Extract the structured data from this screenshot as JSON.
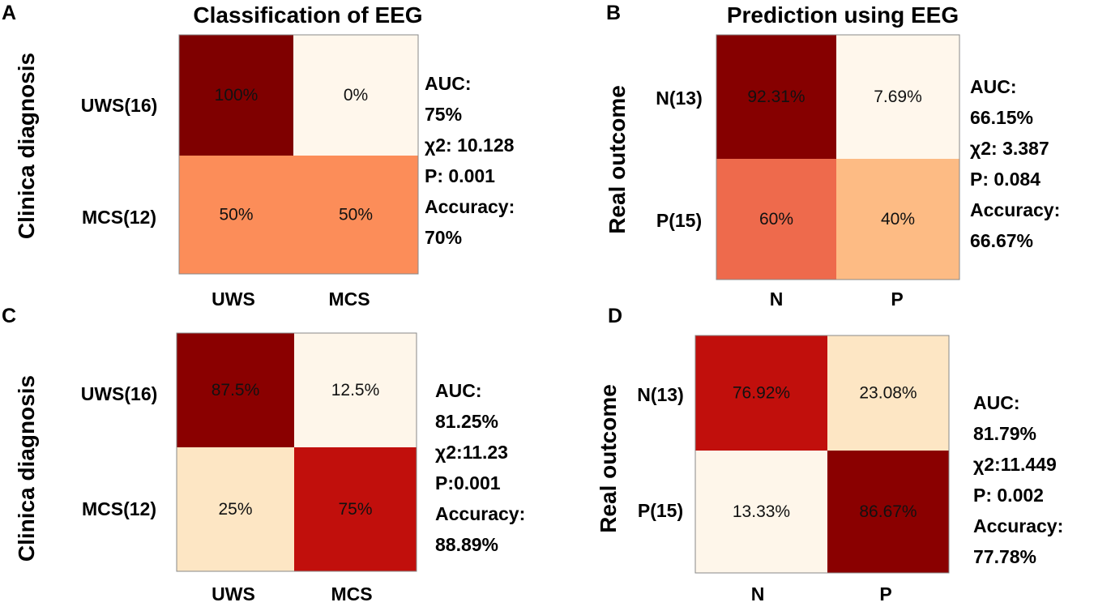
{
  "colors": {
    "c100": "#7f0000",
    "c90": "#860000",
    "c85": "#8a0000",
    "c75": "#c10f0c",
    "c60": "#ee6a4c",
    "c50": "#fc8d59",
    "c40": "#fdbb84",
    "c25": "#fde6c4",
    "c20": "#fde5c2",
    "c10": "#fef6ea",
    "c5": "#fff7ec",
    "c0": "#fff7ec"
  },
  "chart_data": [
    {
      "panel": "A",
      "type": "heatmap",
      "title": "Classification of EEG",
      "ylabel": "Clinica diagnosis",
      "rows": [
        "UWS(16)",
        "MCS(12)"
      ],
      "cols": [
        "UWS",
        "MCS"
      ],
      "values": [
        [
          100,
          0
        ],
        [
          50,
          50
        ]
      ],
      "labels": [
        [
          "100%",
          "0%"
        ],
        [
          "50%",
          "50%"
        ]
      ],
      "stats": [
        "AUC:",
        "75%",
        "χ2: 10.128",
        "P: 0.001",
        "Accuracy:",
        "70%"
      ]
    },
    {
      "panel": "B",
      "type": "heatmap",
      "title": "Prediction using EEG",
      "ylabel": "Real outcome",
      "rows": [
        "N(13)",
        "P(15)"
      ],
      "cols": [
        "N",
        "P"
      ],
      "values": [
        [
          92.31,
          7.69
        ],
        [
          60,
          40
        ]
      ],
      "labels": [
        [
          "92.31%",
          "7.69%"
        ],
        [
          "60%",
          "40%"
        ]
      ],
      "stats": [
        "AUC:",
        "66.15%",
        "χ2: 3.387",
        "P: 0.084",
        "Accuracy:",
        "66.67%"
      ]
    },
    {
      "panel": "C",
      "type": "heatmap",
      "title": "",
      "ylabel": "Clinica diagnosis",
      "rows": [
        "UWS(16)",
        "MCS(12)"
      ],
      "cols": [
        "UWS",
        "MCS"
      ],
      "values": [
        [
          87.5,
          12.5
        ],
        [
          25,
          75
        ]
      ],
      "labels": [
        [
          "87.5%",
          "12.5%"
        ],
        [
          "25%",
          "75%"
        ]
      ],
      "stats": [
        "AUC:",
        "81.25%",
        "χ2:11.23",
        "P:0.001",
        "Accuracy:",
        "88.89%"
      ]
    },
    {
      "panel": "D",
      "type": "heatmap",
      "title": "",
      "ylabel": "Real outcome",
      "rows": [
        "N(13)",
        "P(15)"
      ],
      "cols": [
        "N",
        "P"
      ],
      "values": [
        [
          76.92,
          23.08
        ],
        [
          13.33,
          86.67
        ]
      ],
      "labels": [
        [
          "76.92%",
          "23.08%"
        ],
        [
          "13.33%",
          "86.67%"
        ]
      ],
      "stats": [
        "AUC:",
        "81.79%",
        "χ2:11.449",
        "P: 0.002",
        "Accuracy:",
        "77.78%"
      ]
    }
  ]
}
